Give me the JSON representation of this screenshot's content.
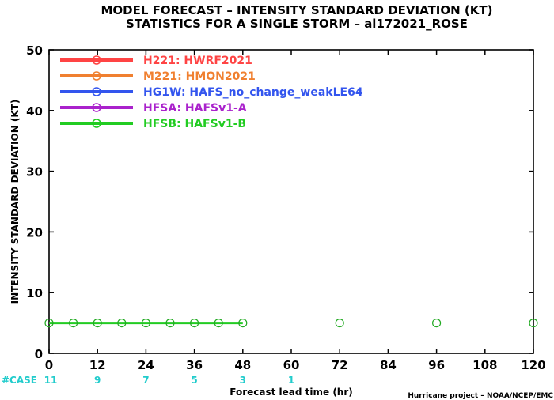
{
  "chart_data": {
    "type": "line",
    "title": [
      "MODEL FORECAST – INTENSITY STANDARD DEVIATION (KT)",
      "STATISTICS FOR A SINGLE STORM – al172021_ROSE"
    ],
    "xlabel": "Forecast lead time (hr)",
    "ylabel": "INTENSITY STANDARD DEVIATION (KT)",
    "xlim": [
      0,
      120
    ],
    "ylim": [
      0,
      50
    ],
    "xticks": [
      0,
      12,
      24,
      36,
      48,
      60,
      72,
      84,
      96,
      108,
      120
    ],
    "yticks": [
      0,
      10,
      20,
      30,
      40,
      50
    ],
    "grid": false,
    "legend_position": "top-left",
    "legend": [
      {
        "code": "H221:",
        "name": "HWRF2021",
        "color": "#ff4444"
      },
      {
        "code": "M221:",
        "name": "HMON2021",
        "color": "#f08030"
      },
      {
        "code": "HG1W:",
        "name": "HAFS_no_change_weakLE64",
        "color": "#3355ee"
      },
      {
        "code": "HFSA:",
        "name": "HAFSv1-A",
        "color": "#aa22cc"
      },
      {
        "code": "HFSB:",
        "name": "HAFSv1-B",
        "color": "#22cc22"
      }
    ],
    "series": [
      {
        "name": "HFSB",
        "color": "#22cc22",
        "x": [
          0,
          6,
          12,
          18,
          24,
          30,
          36,
          42,
          48
        ],
        "values": [
          5,
          5,
          5,
          5,
          5,
          5,
          5,
          5,
          5
        ]
      }
    ],
    "extra_markers": {
      "color": "#22aa22",
      "x": [
        72,
        96,
        120
      ],
      "values": [
        5,
        5,
        5
      ]
    },
    "cases": {
      "label": "#CASE",
      "x": [
        0,
        12,
        24,
        36,
        48,
        60
      ],
      "values": [
        11,
        9,
        7,
        5,
        3,
        1
      ]
    },
    "footer": "Hurricane project – NOAA/NCEP/EMC"
  }
}
